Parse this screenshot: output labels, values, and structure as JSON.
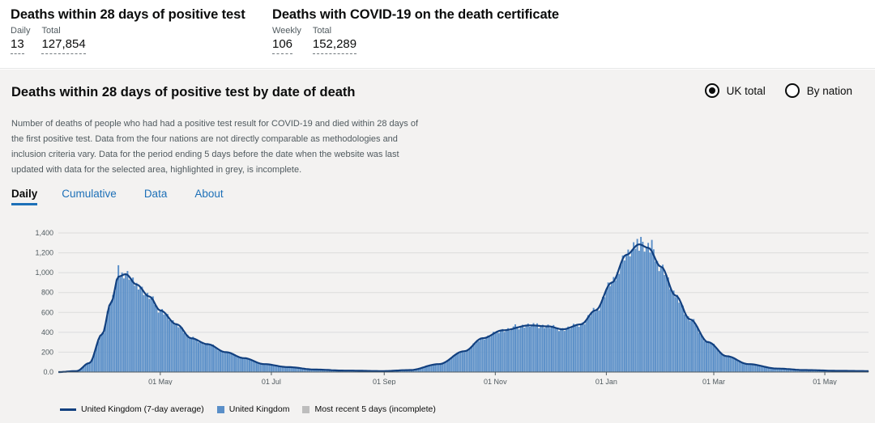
{
  "headline": {
    "group1": {
      "title": "Deaths within 28 days of positive test",
      "daily_label": "Daily",
      "daily_value": "13",
      "total_label": "Total",
      "total_value": "127,854"
    },
    "group2": {
      "title": "Deaths with COVID-19 on the death certificate",
      "weekly_label": "Weekly",
      "weekly_value": "106",
      "total_label": "Total",
      "total_value": "152,289"
    }
  },
  "card": {
    "title": "Deaths within 28 days of positive test by date of death",
    "radio_uk": "UK total",
    "radio_nation": "By nation",
    "selected_radio": "UK total",
    "description": "Number of deaths of people who had had a positive test result for COVID-19 and died within 28 days of the first positive test. Data from the four nations are not directly comparable as methodologies and inclusion criteria vary. Data for the period ending 5 days before the date when the website was last updated with data for the selected area, highlighted in grey, is incomplete."
  },
  "tabs": [
    {
      "label": "Daily",
      "active": true
    },
    {
      "label": "Cumulative",
      "active": false
    },
    {
      "label": "Data",
      "active": false
    },
    {
      "label": "About",
      "active": false
    }
  ],
  "colors": {
    "bar": "#5a8fc8",
    "line": "#12407f",
    "incomplete": "#bdbdbd",
    "link": "#1d70b8"
  },
  "chart_data": {
    "type": "bar",
    "title": "",
    "xlabel": "",
    "ylabel": "",
    "ylim": [
      0,
      1400
    ],
    "y_ticks": [
      "0.0",
      "200",
      "400",
      "600",
      "800",
      "1,000",
      "1,200",
      "1,400"
    ],
    "y_tick_values": [
      0,
      200,
      400,
      600,
      800,
      1000,
      1200,
      1400
    ],
    "x_ticks": [
      "01 May",
      "01 Jul",
      "01 Sep",
      "01 Nov",
      "01 Jan",
      "01 Mar",
      "01 May"
    ],
    "x_tick_dates": [
      "2020-05-01",
      "2020-07-01",
      "2020-09-01",
      "2020-11-01",
      "2021-01-01",
      "2021-03-01",
      "2021-05-01"
    ],
    "date_range": [
      "2020-03-06",
      "2021-05-25"
    ],
    "incomplete_days": 5,
    "series": [
      {
        "name": "United Kingdom (7-day average)",
        "type": "line",
        "points": [
          [
            "2020-03-06",
            0
          ],
          [
            "2020-03-16",
            10
          ],
          [
            "2020-03-23",
            90
          ],
          [
            "2020-03-30",
            380
          ],
          [
            "2020-04-04",
            700
          ],
          [
            "2020-04-08",
            960
          ],
          [
            "2020-04-12",
            985
          ],
          [
            "2020-04-18",
            880
          ],
          [
            "2020-04-25",
            760
          ],
          [
            "2020-05-01",
            620
          ],
          [
            "2020-05-10",
            480
          ],
          [
            "2020-05-18",
            340
          ],
          [
            "2020-05-27",
            280
          ],
          [
            "2020-06-06",
            200
          ],
          [
            "2020-06-16",
            140
          ],
          [
            "2020-06-27",
            80
          ],
          [
            "2020-07-10",
            50
          ],
          [
            "2020-07-25",
            25
          ],
          [
            "2020-08-10",
            15
          ],
          [
            "2020-08-31",
            10
          ],
          [
            "2020-09-15",
            20
          ],
          [
            "2020-10-01",
            80
          ],
          [
            "2020-10-15",
            210
          ],
          [
            "2020-10-25",
            340
          ],
          [
            "2020-11-05",
            420
          ],
          [
            "2020-11-20",
            470
          ],
          [
            "2020-11-30",
            460
          ],
          [
            "2020-12-08",
            430
          ],
          [
            "2020-12-18",
            480
          ],
          [
            "2020-12-26",
            620
          ],
          [
            "2021-01-04",
            900
          ],
          [
            "2021-01-12",
            1180
          ],
          [
            "2021-01-19",
            1285
          ],
          [
            "2021-01-24",
            1250
          ],
          [
            "2021-01-31",
            1060
          ],
          [
            "2021-02-08",
            770
          ],
          [
            "2021-02-16",
            530
          ],
          [
            "2021-02-26",
            300
          ],
          [
            "2021-03-08",
            160
          ],
          [
            "2021-03-20",
            80
          ],
          [
            "2021-04-05",
            35
          ],
          [
            "2021-04-20",
            20
          ],
          [
            "2021-05-10",
            12
          ],
          [
            "2021-05-25",
            10
          ]
        ]
      },
      {
        "name": "United Kingdom",
        "type": "bar"
      },
      {
        "name": "Most recent 5 days (incomplete)",
        "type": "bar"
      }
    ],
    "spikes": [
      [
        "2020-04-08",
        1075
      ],
      [
        "2020-11-12",
        480
      ],
      [
        "2020-11-24",
        490
      ],
      [
        "2021-01-18",
        1340
      ],
      [
        "2021-01-20",
        1360
      ],
      [
        "2021-01-26",
        1330
      ]
    ],
    "legend_position": "bottom-left"
  },
  "legend": {
    "line_label": "United Kingdom (7-day average)",
    "bar_label": "United Kingdom",
    "grey_label": "Most recent 5 days (incomplete)"
  }
}
